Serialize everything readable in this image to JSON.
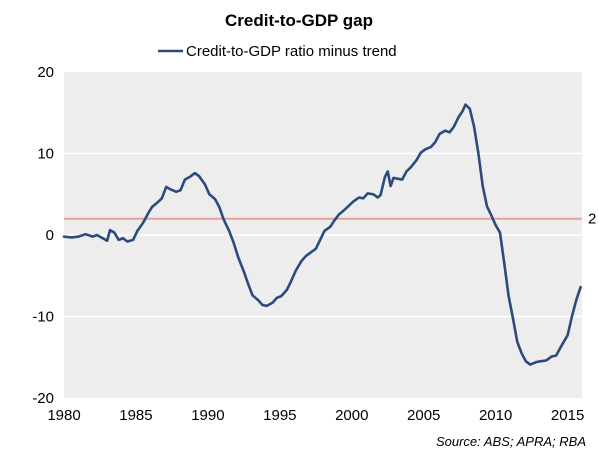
{
  "chart_data": {
    "type": "line",
    "title": "Credit-to-GDP gap",
    "xlabel": "",
    "ylabel": "",
    "xlim": [
      1980,
      2016
    ],
    "ylim": [
      -20,
      20
    ],
    "x_ticks": [
      1980,
      1985,
      1990,
      1995,
      2000,
      2005,
      2010,
      2015
    ],
    "y_ticks": [
      -20,
      -10,
      0,
      10,
      20
    ],
    "grid": "horizontal",
    "legend": "top-center",
    "colors": {
      "plot_background": "#ededed",
      "series": "#2c4a7c",
      "reference_line": "#e6a19a",
      "gridline": "#ffffff"
    },
    "reference_line": {
      "value": 2,
      "label": "2"
    },
    "series": [
      {
        "name": "Credit-to-GDP ratio minus trend",
        "points": [
          [
            1980.0,
            -0.2
          ],
          [
            1980.5,
            -0.3
          ],
          [
            1981.0,
            -0.2
          ],
          [
            1981.5,
            0.1
          ],
          [
            1982.0,
            -0.2
          ],
          [
            1982.3,
            0.0
          ],
          [
            1982.6,
            -0.3
          ],
          [
            1983.0,
            -0.7
          ],
          [
            1983.2,
            0.6
          ],
          [
            1983.5,
            0.3
          ],
          [
            1983.8,
            -0.6
          ],
          [
            1984.1,
            -0.4
          ],
          [
            1984.4,
            -0.8
          ],
          [
            1984.8,
            -0.6
          ],
          [
            1985.1,
            0.5
          ],
          [
            1985.5,
            1.5
          ],
          [
            1985.8,
            2.5
          ],
          [
            1986.1,
            3.4
          ],
          [
            1986.5,
            4.0
          ],
          [
            1986.8,
            4.5
          ],
          [
            1987.1,
            5.9
          ],
          [
            1987.4,
            5.6
          ],
          [
            1987.8,
            5.3
          ],
          [
            1988.1,
            5.5
          ],
          [
            1988.4,
            6.8
          ],
          [
            1988.8,
            7.2
          ],
          [
            1989.1,
            7.6
          ],
          [
            1989.4,
            7.2
          ],
          [
            1989.8,
            6.2
          ],
          [
            1990.1,
            5.0
          ],
          [
            1990.5,
            4.4
          ],
          [
            1990.8,
            3.4
          ],
          [
            1991.1,
            1.9
          ],
          [
            1991.5,
            0.4
          ],
          [
            1991.8,
            -1.0
          ],
          [
            1992.1,
            -2.7
          ],
          [
            1992.5,
            -4.5
          ],
          [
            1992.8,
            -6.0
          ],
          [
            1993.1,
            -7.4
          ],
          [
            1993.5,
            -8.0
          ],
          [
            1993.8,
            -8.6
          ],
          [
            1994.1,
            -8.7
          ],
          [
            1994.5,
            -8.3
          ],
          [
            1994.8,
            -7.7
          ],
          [
            1995.1,
            -7.5
          ],
          [
            1995.5,
            -6.7
          ],
          [
            1995.8,
            -5.6
          ],
          [
            1996.1,
            -4.4
          ],
          [
            1996.5,
            -3.2
          ],
          [
            1996.8,
            -2.6
          ],
          [
            1997.1,
            -2.2
          ],
          [
            1997.5,
            -1.7
          ],
          [
            1997.8,
            -0.6
          ],
          [
            1998.1,
            0.5
          ],
          [
            1998.5,
            1.0
          ],
          [
            1998.8,
            1.8
          ],
          [
            1999.1,
            2.5
          ],
          [
            1999.5,
            3.1
          ],
          [
            1999.8,
            3.6
          ],
          [
            2000.1,
            4.1
          ],
          [
            2000.5,
            4.6
          ],
          [
            2000.8,
            4.5
          ],
          [
            2001.1,
            5.1
          ],
          [
            2001.5,
            5.0
          ],
          [
            2001.8,
            4.6
          ],
          [
            2002.0,
            4.9
          ],
          [
            2002.3,
            7.1
          ],
          [
            2002.5,
            7.8
          ],
          [
            2002.7,
            6.0
          ],
          [
            2002.9,
            7.0
          ],
          [
            2003.2,
            6.9
          ],
          [
            2003.5,
            6.8
          ],
          [
            2003.8,
            7.8
          ],
          [
            2004.1,
            8.3
          ],
          [
            2004.5,
            9.2
          ],
          [
            2004.8,
            10.1
          ],
          [
            2005.1,
            10.5
          ],
          [
            2005.5,
            10.8
          ],
          [
            2005.8,
            11.4
          ],
          [
            2006.1,
            12.4
          ],
          [
            2006.5,
            12.8
          ],
          [
            2006.8,
            12.6
          ],
          [
            2007.1,
            13.3
          ],
          [
            2007.4,
            14.4
          ],
          [
            2007.7,
            15.2
          ],
          [
            2007.9,
            16.0
          ],
          [
            2008.2,
            15.5
          ],
          [
            2008.5,
            13.3
          ],
          [
            2008.8,
            10.0
          ],
          [
            2009.1,
            6.0
          ],
          [
            2009.4,
            3.5
          ],
          [
            2009.7,
            2.4
          ],
          [
            2010.0,
            1.2
          ],
          [
            2010.3,
            0.3
          ],
          [
            2010.6,
            -3.5
          ],
          [
            2010.9,
            -7.5
          ],
          [
            2011.2,
            -10.2
          ],
          [
            2011.5,
            -13.1
          ],
          [
            2011.8,
            -14.5
          ],
          [
            2012.1,
            -15.5
          ],
          [
            2012.4,
            -15.9
          ],
          [
            2012.8,
            -15.6
          ],
          [
            2013.1,
            -15.5
          ],
          [
            2013.5,
            -15.4
          ],
          [
            2013.9,
            -14.9
          ],
          [
            2014.2,
            -14.8
          ],
          [
            2014.6,
            -13.5
          ],
          [
            2015.0,
            -12.3
          ],
          [
            2015.3,
            -10.0
          ],
          [
            2015.6,
            -8.0
          ],
          [
            2015.9,
            -6.4
          ]
        ]
      }
    ],
    "source": "Source: ABS; APRA; RBA"
  }
}
